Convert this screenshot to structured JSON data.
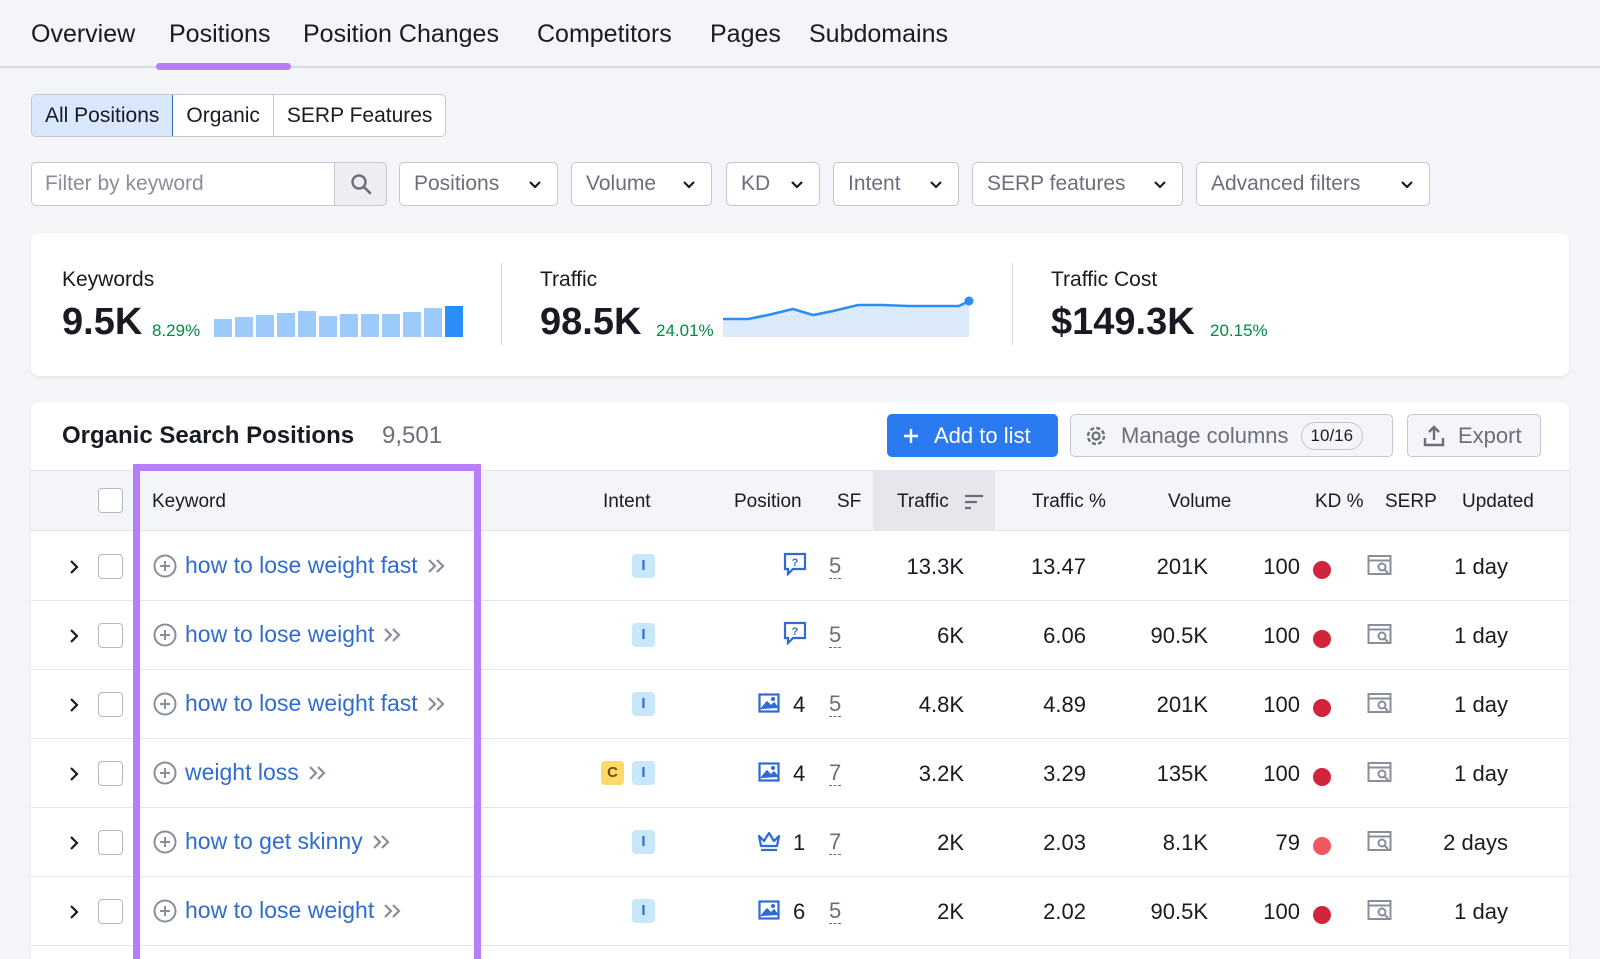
{
  "tabs": [
    "Overview",
    "Positions",
    "Position Changes",
    "Competitors",
    "Pages",
    "Subdomains"
  ],
  "segments": [
    "All Positions",
    "Organic",
    "SERP Features"
  ],
  "filters": {
    "keyword_placeholder": "Filter by keyword",
    "dropdowns": [
      "Positions",
      "Volume",
      "KD",
      "Intent",
      "SERP features",
      "Advanced filters"
    ]
  },
  "summary": {
    "keywords": {
      "label": "Keywords",
      "value": "9.5K",
      "delta": "8.29%"
    },
    "traffic": {
      "label": "Traffic",
      "value": "98.5K",
      "delta": "24.01%"
    },
    "traffic_cost": {
      "label": "Traffic Cost",
      "value": "$149.3K",
      "delta": "20.15%"
    }
  },
  "table": {
    "title": "Organic Search Positions",
    "count": "9,501",
    "add_to_list": "Add to list",
    "manage_columns": "Manage columns",
    "columns_count": "10/16",
    "export": "Export",
    "headers": {
      "keyword": "Keyword",
      "intent": "Intent",
      "position": "Position",
      "sf": "SF",
      "traffic": "Traffic",
      "traffic_pct": "Traffic %",
      "volume": "Volume",
      "kd": "KD %",
      "serp": "SERP",
      "updated": "Updated"
    },
    "rows": [
      {
        "keyword": "how to lose weight fast",
        "intent": [
          "I"
        ],
        "pos_icon": "featured-snippet-icon",
        "position": "",
        "sf": "5",
        "traffic": "13.3K",
        "traffic_pct": "13.47",
        "volume": "201K",
        "kd": "100",
        "kd_color": "#d1253b",
        "updated": "1 day"
      },
      {
        "keyword": "how to lose weight",
        "intent": [
          "I"
        ],
        "pos_icon": "featured-snippet-icon",
        "position": "",
        "sf": "5",
        "traffic": "6K",
        "traffic_pct": "6.06",
        "volume": "90.5K",
        "kd": "100",
        "kd_color": "#d1253b",
        "updated": "1 day"
      },
      {
        "keyword": "how to lose weight fast",
        "intent": [
          "I"
        ],
        "pos_icon": "image-icon",
        "position": "4",
        "sf": "5",
        "traffic": "4.8K",
        "traffic_pct": "4.89",
        "volume": "201K",
        "kd": "100",
        "kd_color": "#d1253b",
        "updated": "1 day"
      },
      {
        "keyword": "weight loss",
        "intent": [
          "C",
          "I"
        ],
        "pos_icon": "image-icon",
        "position": "4",
        "sf": "7",
        "traffic": "3.2K",
        "traffic_pct": "3.29",
        "volume": "135K",
        "kd": "100",
        "kd_color": "#d1253b",
        "updated": "1 day"
      },
      {
        "keyword": "how to get skinny",
        "intent": [
          "I"
        ],
        "pos_icon": "crown-icon",
        "position": "1",
        "sf": "7",
        "traffic": "2K",
        "traffic_pct": "2.03",
        "volume": "8.1K",
        "kd": "79",
        "kd_color": "#f0575f",
        "updated": "2 days"
      },
      {
        "keyword": "how to lose weight",
        "intent": [
          "I"
        ],
        "pos_icon": "image-icon",
        "position": "6",
        "sf": "5",
        "traffic": "2K",
        "traffic_pct": "2.02",
        "volume": "90.5K",
        "kd": "100",
        "kd_color": "#d1253b",
        "updated": "1 day"
      }
    ]
  }
}
